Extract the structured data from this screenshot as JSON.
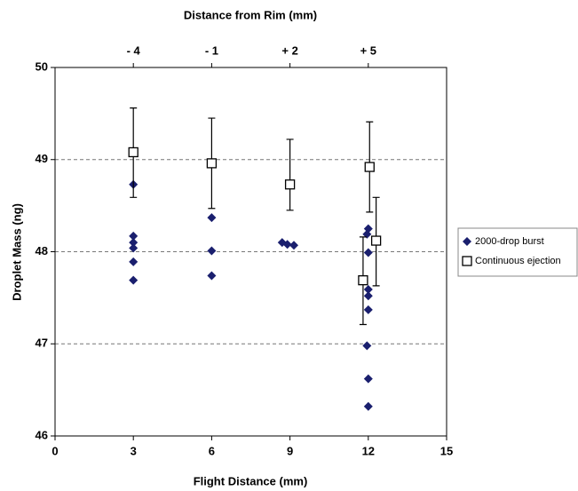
{
  "chart_data": {
    "type": "scatter",
    "xlabel": "Flight Distance (mm)",
    "ylabel": "Droplet Mass (ng)",
    "x2label": "Distance from Rim (mm)",
    "xlim": [
      0,
      15
    ],
    "xticks": [
      0,
      3,
      6,
      9,
      12,
      15
    ],
    "ylim": [
      46,
      50
    ],
    "yticks": [
      46,
      47,
      48,
      49,
      50
    ],
    "x2lim": [
      -7,
      8
    ],
    "x2ticks": [
      {
        "value": -4,
        "label": "- 4"
      },
      {
        "value": -1,
        "label": "- 1"
      },
      {
        "value": 2,
        "label": "+ 2"
      },
      {
        "value": 5,
        "label": "+ 5"
      }
    ],
    "grid": true,
    "legend": "right",
    "series": [
      {
        "name": "2000-drop burst",
        "color": "#1a1f6e",
        "marker": "diamond",
        "x": [
          3,
          3,
          3,
          3,
          3,
          3,
          6,
          6,
          6,
          8.7,
          8.9,
          9.15,
          12,
          11.95,
          12,
          12,
          12,
          12,
          11.95,
          12,
          12
        ],
        "values": [
          48.73,
          48.17,
          48.1,
          48.04,
          47.89,
          47.69,
          48.37,
          48.01,
          47.74,
          48.1,
          48.08,
          48.07,
          48.25,
          48.19,
          47.99,
          47.59,
          47.52,
          47.37,
          46.98,
          46.62,
          46.32
        ]
      },
      {
        "name": "Continuous ejection",
        "color": "#000000",
        "marker": "square",
        "x": [
          3,
          6,
          9,
          11.8,
          12.05,
          12.3
        ],
        "values": [
          49.08,
          48.96,
          48.73,
          47.69,
          48.92,
          48.12
        ],
        "error_plus": [
          0.48,
          0.49,
          0.49,
          0.47,
          0.49,
          0.47
        ],
        "error_minus": [
          0.49,
          0.49,
          0.28,
          0.48,
          0.49,
          0.49
        ]
      }
    ]
  }
}
